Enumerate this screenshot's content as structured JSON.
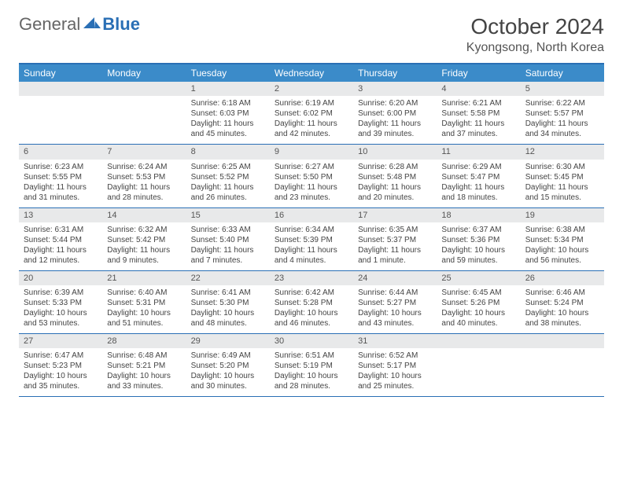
{
  "brand": {
    "part1": "General",
    "part2": "Blue"
  },
  "title": "October 2024",
  "location": "Kyongsong, North Korea",
  "colors": {
    "header_bg": "#3b8bc9",
    "border": "#2a6fb5",
    "daynum_bg": "#e8e9ea",
    "text": "#444444",
    "background": "#ffffff"
  },
  "day_headers": [
    "Sunday",
    "Monday",
    "Tuesday",
    "Wednesday",
    "Thursday",
    "Friday",
    "Saturday"
  ],
  "weeks": [
    [
      null,
      null,
      {
        "n": "1",
        "sr": "Sunrise: 6:18 AM",
        "ss": "Sunset: 6:03 PM",
        "dl": "Daylight: 11 hours and 45 minutes."
      },
      {
        "n": "2",
        "sr": "Sunrise: 6:19 AM",
        "ss": "Sunset: 6:02 PM",
        "dl": "Daylight: 11 hours and 42 minutes."
      },
      {
        "n": "3",
        "sr": "Sunrise: 6:20 AM",
        "ss": "Sunset: 6:00 PM",
        "dl": "Daylight: 11 hours and 39 minutes."
      },
      {
        "n": "4",
        "sr": "Sunrise: 6:21 AM",
        "ss": "Sunset: 5:58 PM",
        "dl": "Daylight: 11 hours and 37 minutes."
      },
      {
        "n": "5",
        "sr": "Sunrise: 6:22 AM",
        "ss": "Sunset: 5:57 PM",
        "dl": "Daylight: 11 hours and 34 minutes."
      }
    ],
    [
      {
        "n": "6",
        "sr": "Sunrise: 6:23 AM",
        "ss": "Sunset: 5:55 PM",
        "dl": "Daylight: 11 hours and 31 minutes."
      },
      {
        "n": "7",
        "sr": "Sunrise: 6:24 AM",
        "ss": "Sunset: 5:53 PM",
        "dl": "Daylight: 11 hours and 28 minutes."
      },
      {
        "n": "8",
        "sr": "Sunrise: 6:25 AM",
        "ss": "Sunset: 5:52 PM",
        "dl": "Daylight: 11 hours and 26 minutes."
      },
      {
        "n": "9",
        "sr": "Sunrise: 6:27 AM",
        "ss": "Sunset: 5:50 PM",
        "dl": "Daylight: 11 hours and 23 minutes."
      },
      {
        "n": "10",
        "sr": "Sunrise: 6:28 AM",
        "ss": "Sunset: 5:48 PM",
        "dl": "Daylight: 11 hours and 20 minutes."
      },
      {
        "n": "11",
        "sr": "Sunrise: 6:29 AM",
        "ss": "Sunset: 5:47 PM",
        "dl": "Daylight: 11 hours and 18 minutes."
      },
      {
        "n": "12",
        "sr": "Sunrise: 6:30 AM",
        "ss": "Sunset: 5:45 PM",
        "dl": "Daylight: 11 hours and 15 minutes."
      }
    ],
    [
      {
        "n": "13",
        "sr": "Sunrise: 6:31 AM",
        "ss": "Sunset: 5:44 PM",
        "dl": "Daylight: 11 hours and 12 minutes."
      },
      {
        "n": "14",
        "sr": "Sunrise: 6:32 AM",
        "ss": "Sunset: 5:42 PM",
        "dl": "Daylight: 11 hours and 9 minutes."
      },
      {
        "n": "15",
        "sr": "Sunrise: 6:33 AM",
        "ss": "Sunset: 5:40 PM",
        "dl": "Daylight: 11 hours and 7 minutes."
      },
      {
        "n": "16",
        "sr": "Sunrise: 6:34 AM",
        "ss": "Sunset: 5:39 PM",
        "dl": "Daylight: 11 hours and 4 minutes."
      },
      {
        "n": "17",
        "sr": "Sunrise: 6:35 AM",
        "ss": "Sunset: 5:37 PM",
        "dl": "Daylight: 11 hours and 1 minute."
      },
      {
        "n": "18",
        "sr": "Sunrise: 6:37 AM",
        "ss": "Sunset: 5:36 PM",
        "dl": "Daylight: 10 hours and 59 minutes."
      },
      {
        "n": "19",
        "sr": "Sunrise: 6:38 AM",
        "ss": "Sunset: 5:34 PM",
        "dl": "Daylight: 10 hours and 56 minutes."
      }
    ],
    [
      {
        "n": "20",
        "sr": "Sunrise: 6:39 AM",
        "ss": "Sunset: 5:33 PM",
        "dl": "Daylight: 10 hours and 53 minutes."
      },
      {
        "n": "21",
        "sr": "Sunrise: 6:40 AM",
        "ss": "Sunset: 5:31 PM",
        "dl": "Daylight: 10 hours and 51 minutes."
      },
      {
        "n": "22",
        "sr": "Sunrise: 6:41 AM",
        "ss": "Sunset: 5:30 PM",
        "dl": "Daylight: 10 hours and 48 minutes."
      },
      {
        "n": "23",
        "sr": "Sunrise: 6:42 AM",
        "ss": "Sunset: 5:28 PM",
        "dl": "Daylight: 10 hours and 46 minutes."
      },
      {
        "n": "24",
        "sr": "Sunrise: 6:44 AM",
        "ss": "Sunset: 5:27 PM",
        "dl": "Daylight: 10 hours and 43 minutes."
      },
      {
        "n": "25",
        "sr": "Sunrise: 6:45 AM",
        "ss": "Sunset: 5:26 PM",
        "dl": "Daylight: 10 hours and 40 minutes."
      },
      {
        "n": "26",
        "sr": "Sunrise: 6:46 AM",
        "ss": "Sunset: 5:24 PM",
        "dl": "Daylight: 10 hours and 38 minutes."
      }
    ],
    [
      {
        "n": "27",
        "sr": "Sunrise: 6:47 AM",
        "ss": "Sunset: 5:23 PM",
        "dl": "Daylight: 10 hours and 35 minutes."
      },
      {
        "n": "28",
        "sr": "Sunrise: 6:48 AM",
        "ss": "Sunset: 5:21 PM",
        "dl": "Daylight: 10 hours and 33 minutes."
      },
      {
        "n": "29",
        "sr": "Sunrise: 6:49 AM",
        "ss": "Sunset: 5:20 PM",
        "dl": "Daylight: 10 hours and 30 minutes."
      },
      {
        "n": "30",
        "sr": "Sunrise: 6:51 AM",
        "ss": "Sunset: 5:19 PM",
        "dl": "Daylight: 10 hours and 28 minutes."
      },
      {
        "n": "31",
        "sr": "Sunrise: 6:52 AM",
        "ss": "Sunset: 5:17 PM",
        "dl": "Daylight: 10 hours and 25 minutes."
      },
      null,
      null
    ]
  ]
}
